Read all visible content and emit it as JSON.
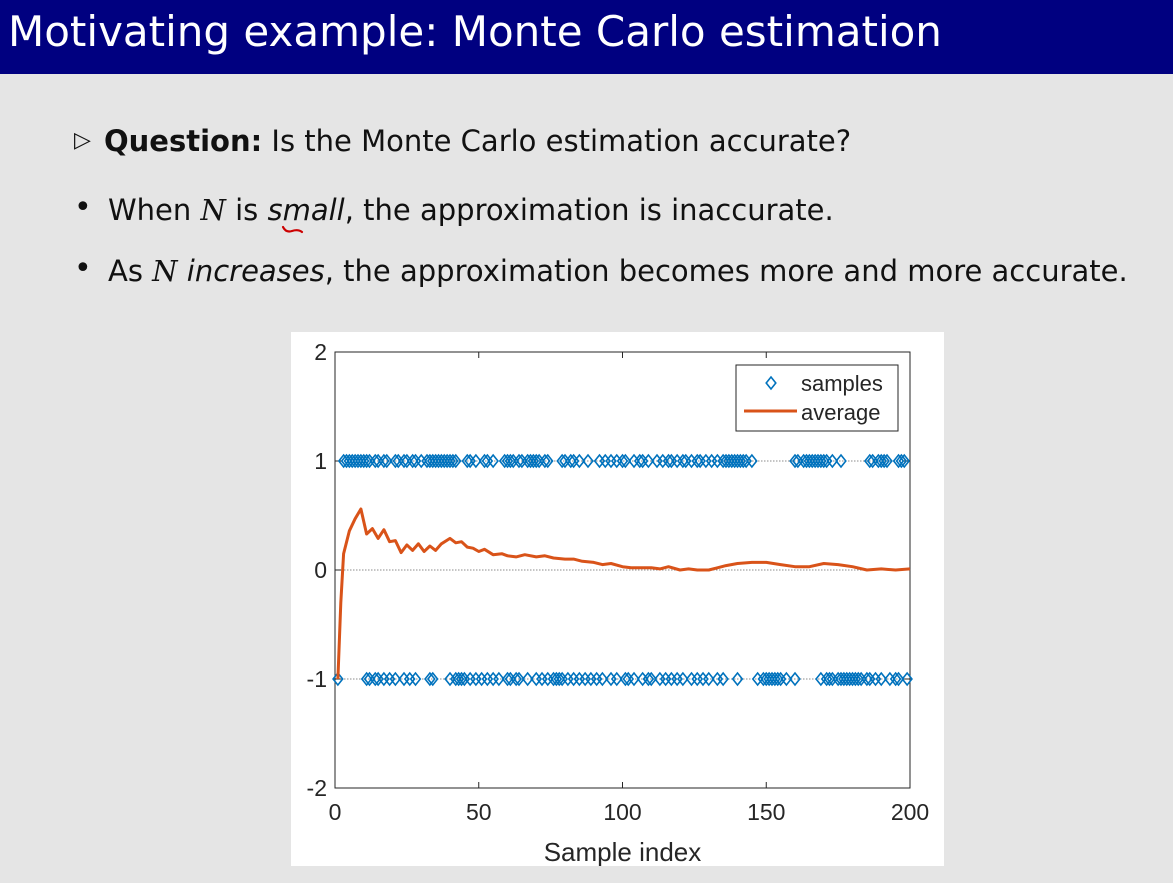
{
  "slide": {
    "title": "Motivating example: Monte Carlo estimation",
    "triangle_marker": "▷",
    "bullet_marker": "•",
    "line1": {
      "bold": "Question:",
      "rest": " Is the Monte Carlo estimation accurate?"
    },
    "line2": {
      "pre": "When ",
      "math": "N",
      "mid": " is ",
      "em": "small",
      "post": ", the approximation is inaccurate."
    },
    "line3": {
      "pre": "As ",
      "math": "N",
      "mid": " ",
      "em": "increases",
      "post": ", the approximation becomes more and more accurate."
    }
  },
  "colors": {
    "title_bg": "#000080",
    "samples": "#0072BD",
    "average": "#D95319",
    "annotation": "#cc0000"
  },
  "chart_data": {
    "type": "scatter+line",
    "xlabel": "Sample index",
    "ylabel": "",
    "xlim": [
      0,
      200
    ],
    "ylim": [
      -2,
      2
    ],
    "xticks": [
      0,
      50,
      100,
      150,
      200
    ],
    "yticks": [
      -2,
      -1,
      0,
      1,
      2
    ],
    "grid_lines_y": [
      -1,
      0,
      1
    ],
    "legend": {
      "position": "top-right",
      "entries": [
        "samples",
        "average"
      ]
    },
    "series": [
      {
        "name": "samples",
        "kind": "scatter",
        "marker": "diamond",
        "x_at_plus1": [
          3,
          4,
          5,
          6,
          7,
          8,
          9,
          10,
          11,
          12,
          14,
          15,
          17,
          18,
          21,
          22,
          24,
          25,
          27,
          28,
          30,
          32,
          33,
          34,
          35,
          36,
          37,
          38,
          39,
          40,
          41,
          42,
          46,
          47,
          49,
          52,
          53,
          55,
          59,
          60,
          61,
          62,
          64,
          65,
          67,
          68,
          69,
          70,
          71,
          73,
          74,
          79,
          80,
          82,
          83,
          85,
          88,
          92,
          94,
          96,
          98,
          100,
          101,
          104,
          106,
          107,
          109,
          112,
          114,
          116,
          117,
          119,
          121,
          122,
          124,
          126,
          127,
          129,
          131,
          133,
          135,
          136,
          137,
          138,
          139,
          140,
          141,
          142,
          143,
          145,
          160,
          161,
          163,
          164,
          165,
          166,
          167,
          168,
          169,
          170,
          171,
          173,
          176,
          186,
          187,
          189,
          190,
          191,
          192,
          196,
          197,
          198
        ],
        "x_at_minus1": [
          1,
          11,
          12,
          14,
          15,
          17,
          19,
          21,
          24,
          26,
          28,
          33,
          34,
          40,
          42,
          43,
          44,
          45,
          47,
          49,
          51,
          53,
          55,
          57,
          60,
          61,
          63,
          64,
          67,
          70,
          72,
          74,
          76,
          77,
          78,
          79,
          81,
          83,
          85,
          87,
          89,
          91,
          93,
          96,
          98,
          101,
          102,
          104,
          107,
          109,
          110,
          113,
          115,
          117,
          119,
          121,
          124,
          126,
          128,
          130,
          133,
          135,
          140,
          147,
          149,
          150,
          151,
          152,
          153,
          154,
          155,
          157,
          160,
          169,
          171,
          172,
          173,
          175,
          176,
          177,
          178,
          179,
          180,
          181,
          182,
          183,
          185,
          186,
          188,
          190,
          193,
          195,
          196,
          199
        ]
      },
      {
        "name": "average",
        "kind": "line",
        "x": [
          1,
          2,
          3,
          5,
          7,
          9,
          11,
          13,
          15,
          17,
          19,
          21,
          23,
          25,
          27,
          29,
          31,
          33,
          35,
          37,
          40,
          42,
          44,
          46,
          48,
          50,
          52,
          55,
          58,
          60,
          63,
          66,
          70,
          73,
          76,
          80,
          83,
          86,
          90,
          93,
          96,
          100,
          103,
          106,
          110,
          113,
          116,
          120,
          123,
          126,
          130,
          133,
          136,
          140,
          145,
          150,
          155,
          160,
          165,
          170,
          175,
          180,
          185,
          190,
          195,
          200
        ],
        "y": [
          -1,
          -0.3,
          0.15,
          0.36,
          0.47,
          0.56,
          0.33,
          0.38,
          0.29,
          0.37,
          0.26,
          0.27,
          0.16,
          0.23,
          0.18,
          0.24,
          0.17,
          0.22,
          0.18,
          0.24,
          0.29,
          0.25,
          0.26,
          0.21,
          0.2,
          0.17,
          0.19,
          0.14,
          0.15,
          0.13,
          0.12,
          0.14,
          0.12,
          0.13,
          0.11,
          0.1,
          0.1,
          0.08,
          0.07,
          0.05,
          0.06,
          0.03,
          0.02,
          0.02,
          0.02,
          0.01,
          0.03,
          0.0,
          0.01,
          0.0,
          0.0,
          0.02,
          0.04,
          0.06,
          0.07,
          0.07,
          0.05,
          0.03,
          0.03,
          0.06,
          0.05,
          0.03,
          0.0,
          0.01,
          0.0,
          0.01
        ]
      }
    ]
  }
}
